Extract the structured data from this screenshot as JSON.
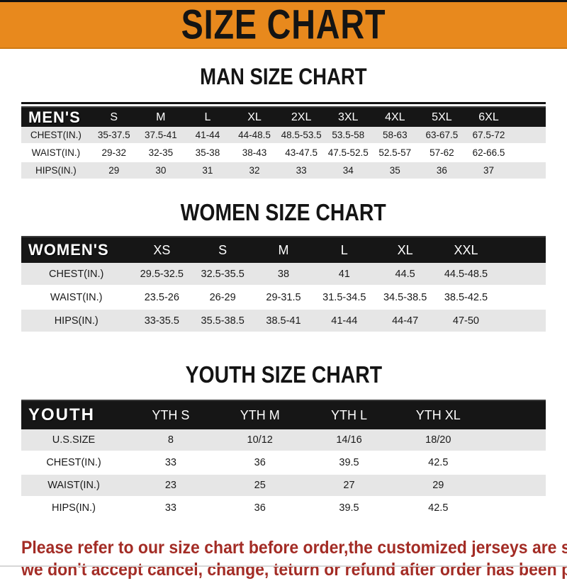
{
  "banner": {
    "title": "SIZE CHART"
  },
  "colors": {
    "banner_bg": "#E8891D",
    "bar_bg": "#161616",
    "row_gray": "#E6E6E6",
    "footer_red": "#A32C25"
  },
  "sections": [
    {
      "title": "MAN SIZE CHART",
      "header_label": "MEN'S",
      "columns": [
        "S",
        "M",
        "L",
        "XL",
        "2XL",
        "3XL",
        "4XL",
        "5XL",
        "6XL"
      ],
      "rows": [
        {
          "label": "CHEST(IN.)",
          "values": [
            "35-37.5",
            "37.5-41",
            "41-44",
            "44-48.5",
            "48.5-53.5",
            "53.5-58",
            "58-63",
            "63-67.5",
            "67.5-72"
          ]
        },
        {
          "label": "WAIST(IN.)",
          "values": [
            "29-32",
            "32-35",
            "35-38",
            "38-43",
            "43-47.5",
            "47.5-52.5",
            "52.5-57",
            "57-62",
            "62-66.5"
          ]
        },
        {
          "label": "HIPS(IN.)",
          "values": [
            "29",
            "30",
            "31",
            "32",
            "33",
            "34",
            "35",
            "36",
            "37"
          ]
        }
      ]
    },
    {
      "title": "WOMEN SIZE CHART",
      "header_label": "WOMEN'S",
      "columns": [
        "XS",
        "S",
        "M",
        "L",
        "XL",
        "XXL"
      ],
      "rows": [
        {
          "label": "CHEST(IN.)",
          "values": [
            "29.5-32.5",
            "32.5-35.5",
            "38",
            "41",
            "44.5",
            "44.5-48.5"
          ]
        },
        {
          "label": "WAIST(IN.)",
          "values": [
            "23.5-26",
            "26-29",
            "29-31.5",
            "31.5-34.5",
            "34.5-38.5",
            "38.5-42.5"
          ]
        },
        {
          "label": "HIPS(IN.)",
          "values": [
            "33-35.5",
            "35.5-38.5",
            "38.5-41",
            "41-44",
            "44-47",
            "47-50"
          ]
        }
      ]
    },
    {
      "title": "YOUTH SIZE CHART",
      "header_label": "YOUTH",
      "columns": [
        "YTH S",
        "YTH M",
        "YTH L",
        "YTH XL"
      ],
      "rows": [
        {
          "label": "U.S.SIZE",
          "values": [
            "8",
            "10/12",
            "14/16",
            "18/20"
          ]
        },
        {
          "label": "CHEST(IN.)",
          "values": [
            "33",
            "36",
            "39.5",
            "42.5"
          ]
        },
        {
          "label": "WAIST(IN.)",
          "values": [
            "23",
            "25",
            "27",
            "29"
          ]
        },
        {
          "label": "HIPS(IN.)",
          "values": [
            "33",
            "36",
            "39.5",
            "42.5"
          ]
        }
      ]
    }
  ],
  "footer": {
    "line1": "Please refer to our size chart before order,the customized jerseys are special products,",
    "line2": "we don't accept cancel, change, teturn or refund after order has been placed!"
  }
}
